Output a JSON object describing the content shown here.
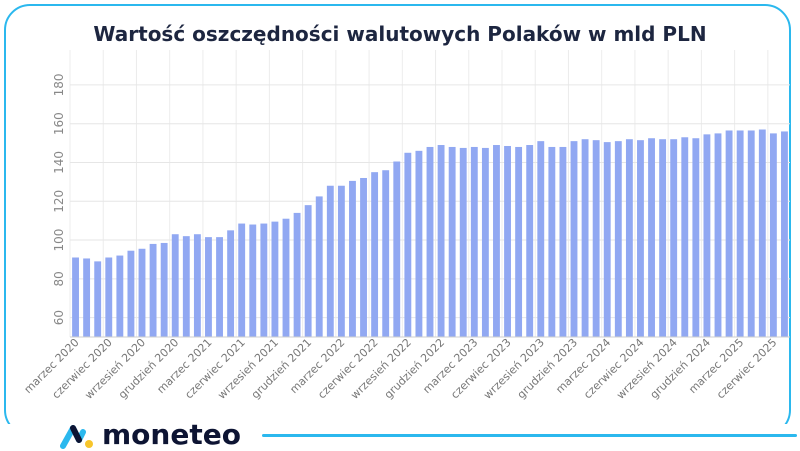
{
  "chart_data": {
    "type": "bar",
    "title": "Wartość oszczędności walutowych Polaków w mld PLN",
    "xlabel": "",
    "ylabel": "",
    "ylim": [
      50,
      198
    ],
    "y_ticks": [
      60,
      80,
      100,
      120,
      140,
      160,
      180
    ],
    "x_tick_labels": [
      "marzec 2020",
      "czerwiec 2020",
      "wrzesień 2020",
      "grudzień 2020",
      "marzec 2021",
      "czerwiec 2021",
      "wrzesień 2021",
      "grudzień 2021",
      "marzec 2022",
      "czerwiec 2022",
      "wrzesień 2022",
      "grudzień 2022",
      "marzec 2023",
      "czerwiec 2023",
      "wrzesień 2023",
      "grudzień 2023",
      "marzec 2024",
      "czerwiec 2024",
      "wrzesień 2024",
      "grudzień 2024",
      "marzec 2025",
      "czerwiec 2025"
    ],
    "bar_color": "#91a8f2",
    "values": [
      91,
      90.5,
      89,
      91,
      92,
      94.5,
      95.5,
      98,
      98.5,
      103,
      102,
      103,
      101.5,
      101.5,
      105,
      108.5,
      108,
      108.5,
      109.5,
      111,
      114,
      118,
      122.5,
      128,
      128,
      130.5,
      132,
      135,
      136,
      140.5,
      145,
      146,
      148,
      149,
      148,
      147.5,
      148,
      147.5,
      149,
      148.5,
      148,
      149,
      151,
      148,
      148,
      151,
      152,
      151.5,
      150.5,
      151,
      152,
      151.5,
      152.5,
      152,
      152,
      153,
      152.5,
      154.5,
      155,
      156.5,
      156.5,
      156.5,
      157,
      155,
      156
    ]
  },
  "brand": {
    "name": "moneteo"
  }
}
